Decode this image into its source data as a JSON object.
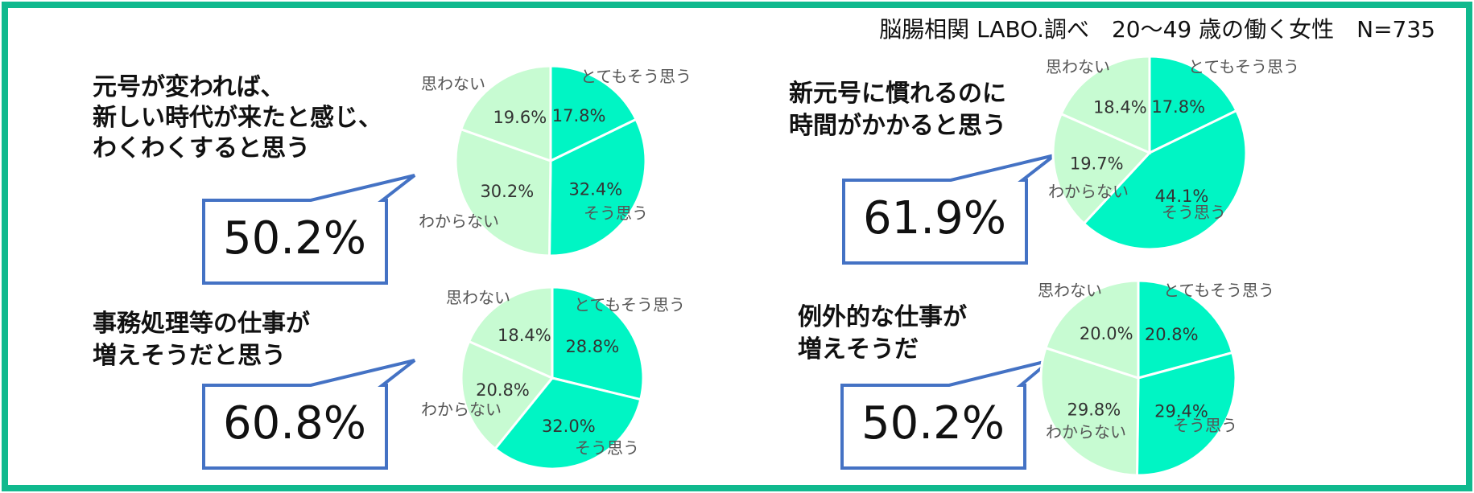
{
  "source_note": "脳腸相関 LABO.調べ　20～49 歳の働く女性　N=735",
  "colors": {
    "frame": "#10b98e",
    "callout_stroke": "#4472c4",
    "slice_strong": "#00f5c4",
    "slice_light": "#c7fbd2",
    "slice_border": "#ffffff"
  },
  "chart_data": [
    {
      "type": "pie",
      "question_lines": [
        "元号が変われば、",
        "新しい時代が来たと感じ、",
        "わくわくすると思う"
      ],
      "highlight": "50.2%",
      "slices": [
        {
          "label": "とてもそう思う",
          "value": 17.8,
          "value_text": "17.8%"
        },
        {
          "label": "そう思う",
          "value": 32.4,
          "value_text": "32.4%"
        },
        {
          "label": "わからない",
          "value": 30.2,
          "value_text": "30.2%"
        },
        {
          "label": "思わない",
          "value": 19.6,
          "value_text": "19.6%"
        }
      ]
    },
    {
      "type": "pie",
      "question_lines": [
        "新元号に慣れるのに",
        "時間がかかると思う"
      ],
      "highlight": "61.9%",
      "slices": [
        {
          "label": "とてもそう思う",
          "value": 17.8,
          "value_text": "17.8%"
        },
        {
          "label": "そう思う",
          "value": 44.1,
          "value_text": "44.1%"
        },
        {
          "label": "わからない",
          "value": 19.7,
          "value_text": "19.7%"
        },
        {
          "label": "思わない",
          "value": 18.4,
          "value_text": "18.4%"
        }
      ]
    },
    {
      "type": "pie",
      "question_lines": [
        "事務処理等の仕事が",
        "増えそうだと思う"
      ],
      "highlight": "60.8%",
      "slices": [
        {
          "label": "とてもそう思う",
          "value": 28.8,
          "value_text": "28.8%"
        },
        {
          "label": "そう思う",
          "value": 32.0,
          "value_text": "32.0%"
        },
        {
          "label": "わからない",
          "value": 20.8,
          "value_text": "20.8%"
        },
        {
          "label": "思わない",
          "value": 18.4,
          "value_text": "18.4%"
        }
      ]
    },
    {
      "type": "pie",
      "question_lines": [
        "例外的な仕事が",
        "増えそうだ"
      ],
      "highlight": "50.2%",
      "slices": [
        {
          "label": "とてもそう思う",
          "value": 20.8,
          "value_text": "20.8%"
        },
        {
          "label": "そう思う",
          "value": 29.4,
          "value_text": "29.4%"
        },
        {
          "label": "わからない",
          "value": 29.8,
          "value_text": "29.8%"
        },
        {
          "label": "思わない",
          "value": 20.0,
          "value_text": "20.0%"
        }
      ]
    }
  ]
}
